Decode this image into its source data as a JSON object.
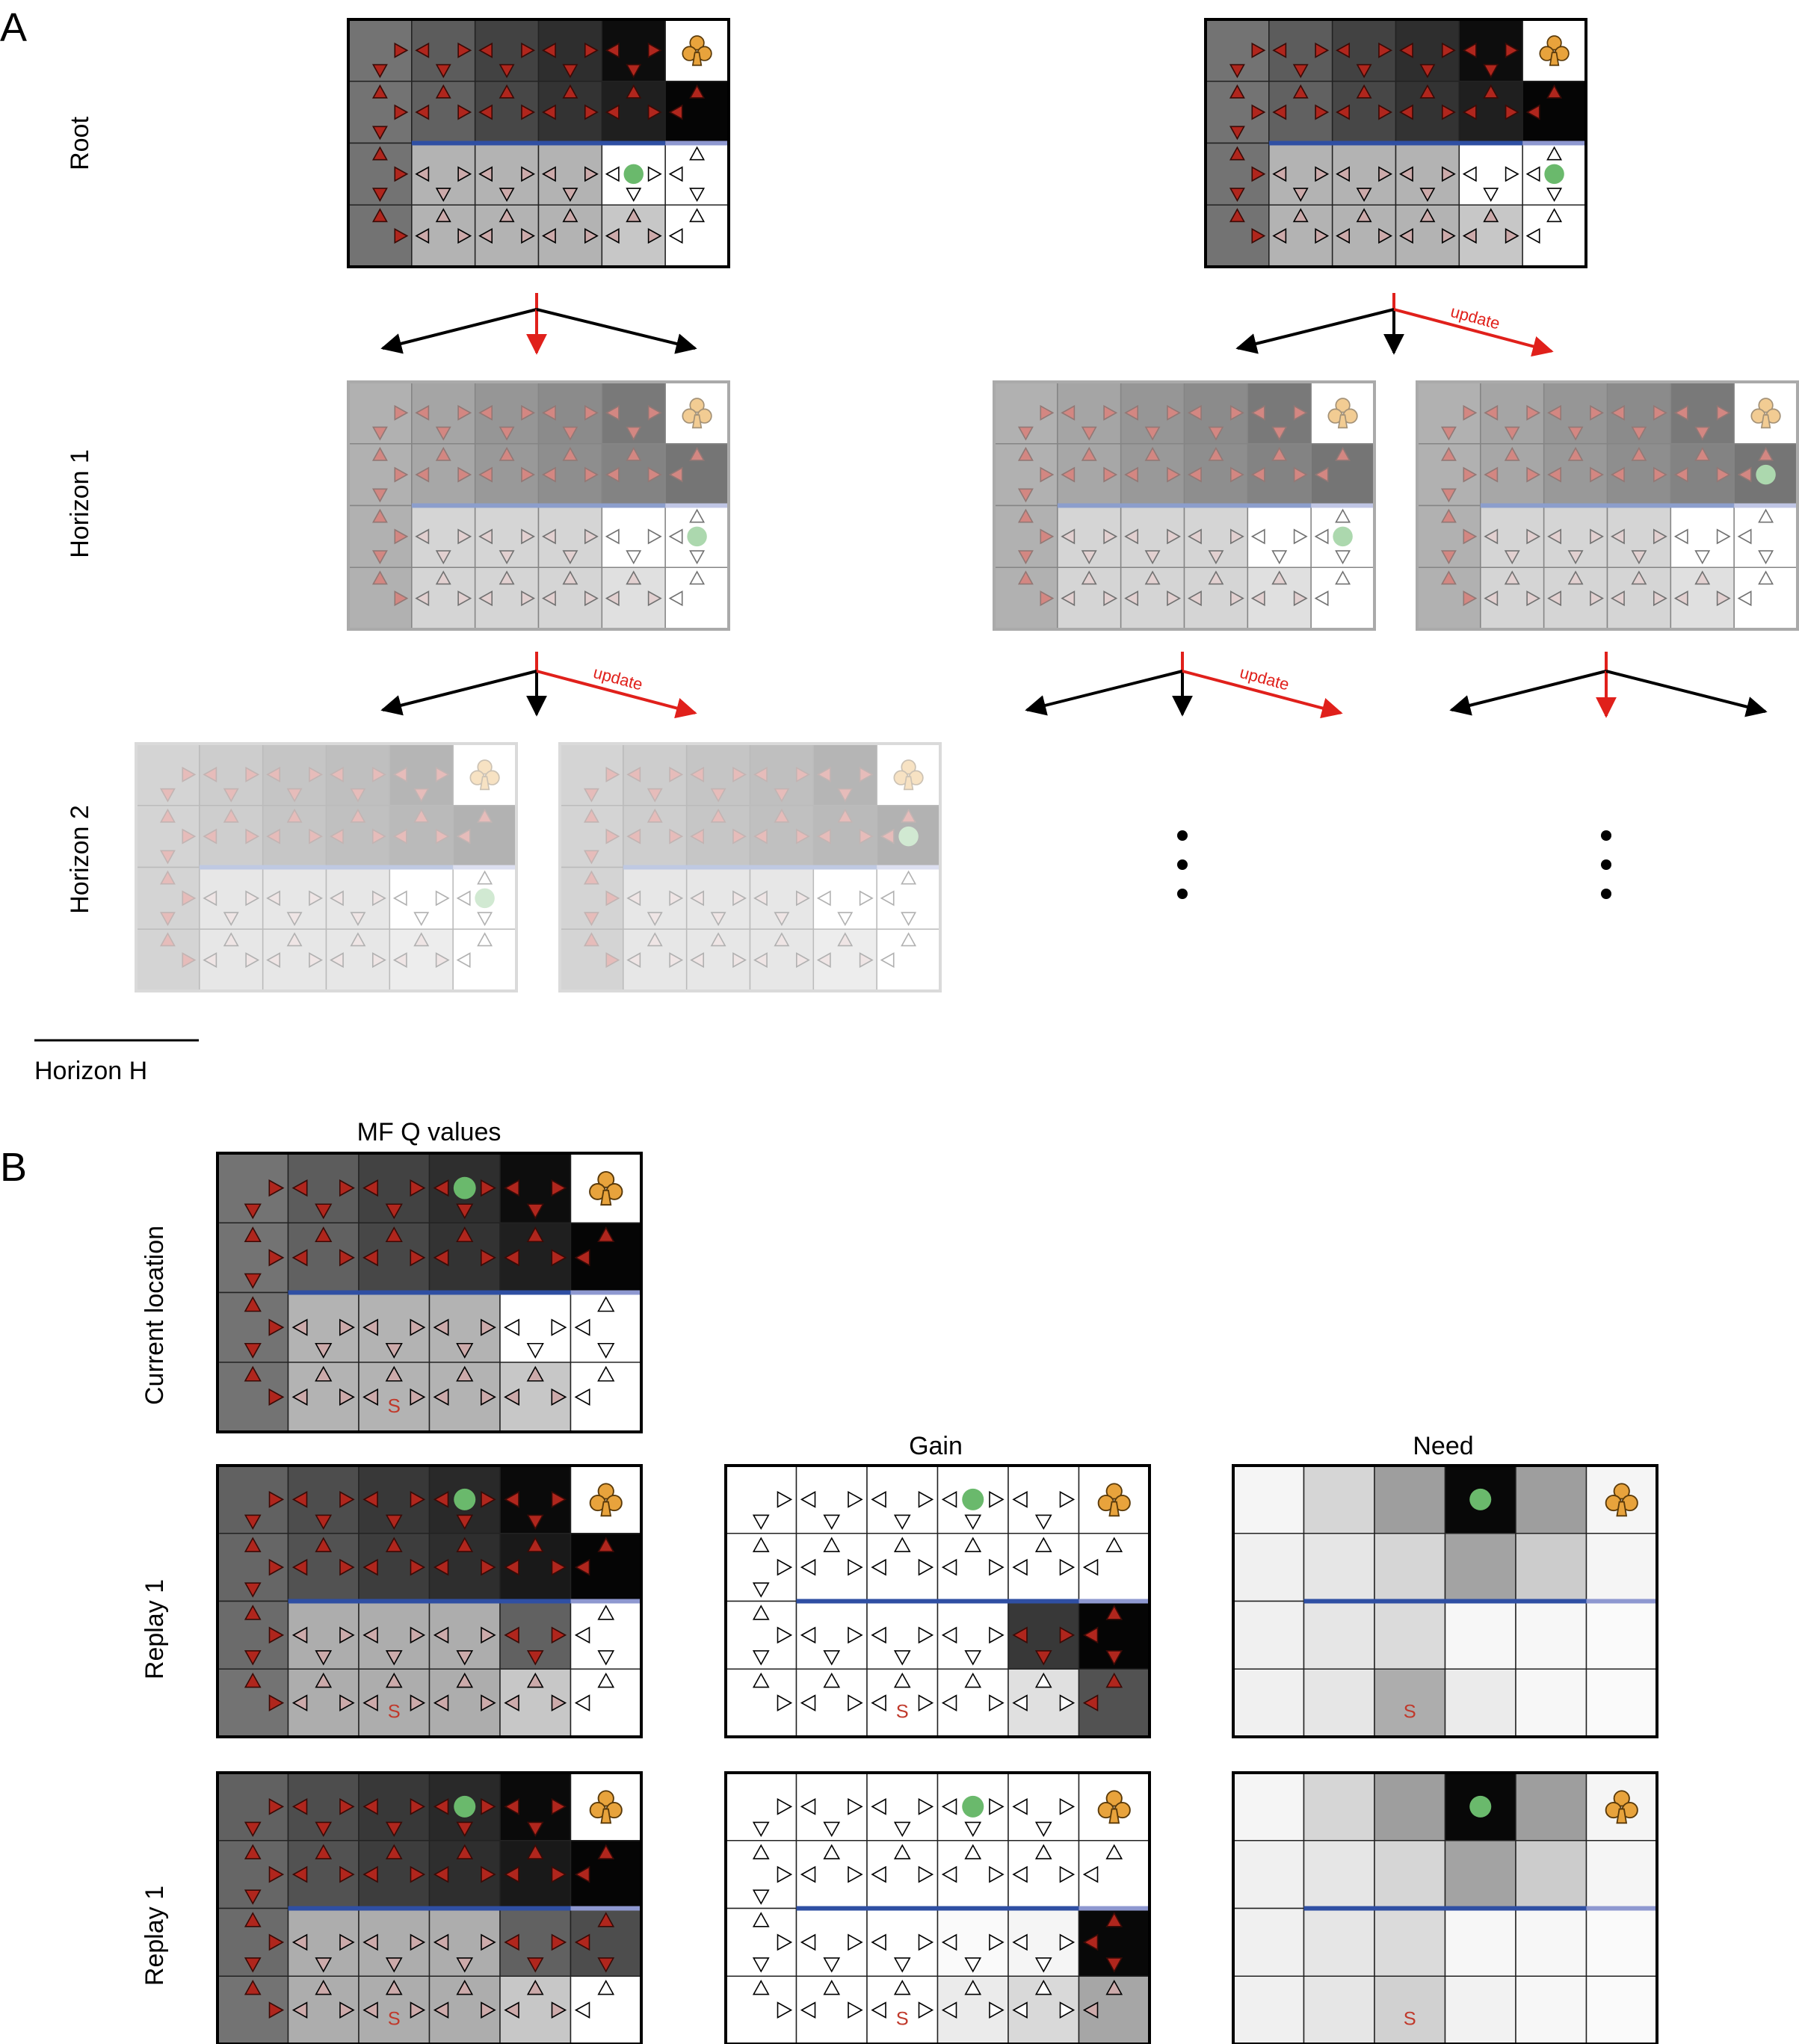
{
  "panel_a": {
    "letter": "A",
    "row_labels": {
      "root": "Root",
      "horizon1": "Horizon 1",
      "horizon2": "Horizon 2"
    },
    "update_label": "update",
    "scale_label": "Horizon H",
    "ellipsis": "⋮"
  },
  "panel_b": {
    "letter": "B",
    "column_titles": {
      "mf": "MF Q values",
      "gain": "Gain",
      "need": "Need"
    },
    "row_labels": {
      "current": "Current location",
      "replay_a": "Replay 1",
      "replay_b": "Replay 1"
    },
    "start_marker": "S",
    "reward_glyph": "♣"
  },
  "grid": {
    "rows": 4,
    "cols": 6,
    "wall": "between row 2 and row 3, columns 2-6",
    "reward_cell": "row 1, column 6",
    "start_cell": "row 4, column 3"
  },
  "colors": {
    "wall": "#2f4fa3",
    "wall_light": "#8e98d0",
    "agent": "#6ab96c",
    "reward": "#e8a33c",
    "arrow_red": "#b0261d",
    "update_arrow": "#e0201b",
    "start_marker": "#c0392b"
  }
}
